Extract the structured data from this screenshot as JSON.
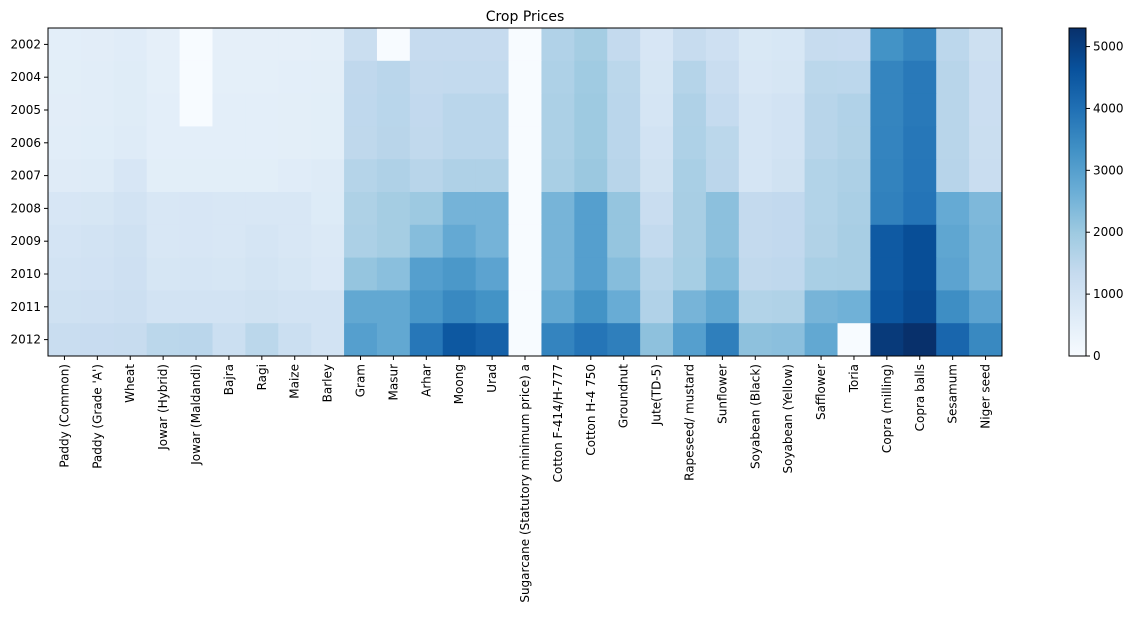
{
  "chart_data": {
    "type": "heatmap",
    "title": "Crop Prices",
    "xlabel": "",
    "ylabel": "",
    "rows": [
      "2002",
      "2004",
      "2005",
      "2006",
      "2007",
      "2008",
      "2009",
      "2010",
      "2011",
      "2012"
    ],
    "columns": [
      "Paddy (Common)",
      "Paddy (Grade 'A')",
      "Wheat",
      "Jowar (Hybrid)",
      "Jowar (Maldandi)",
      "Bajra",
      "Ragi",
      "Maize",
      "Barley",
      "Gram",
      "Masur",
      "Arhar",
      "Moong",
      "Urad",
      "Sugarcane (Statutory minimum price) a",
      "Cotton F-414/H-777",
      "Cotton H-4 750",
      "Groundnut",
      "Jute(TD-5)",
      "Rapeseed/ mustard",
      "Sunflower",
      "Soyabean (Black)",
      "Soyabean (Yellow)",
      "Safflower",
      "Toria",
      "Copra (milling)",
      "Copra balls",
      "Sesamum",
      "Niger seed"
    ],
    "values": [
      [
        530,
        560,
        620,
        485,
        0,
        485,
        485,
        485,
        500,
        1220,
        0,
        1320,
        1330,
        1330,
        0,
        1675,
        1875,
        1355,
        850,
        1300,
        1100,
        795,
        845,
        1300,
        1265,
        3300,
        3570,
        1485,
        1120
      ],
      [
        550,
        580,
        630,
        515,
        0,
        515,
        515,
        525,
        540,
        1425,
        1525,
        1360,
        1370,
        1370,
        0,
        1725,
        1960,
        1500,
        890,
        1600,
        1250,
        840,
        885,
        1500,
        1490,
        3570,
        3820,
        1550,
        1200
      ],
      [
        560,
        590,
        640,
        525,
        0,
        525,
        525,
        540,
        550,
        1435,
        1535,
        1390,
        1520,
        1520,
        0,
        1760,
        1980,
        1520,
        910,
        1700,
        1340,
        900,
        1000,
        1550,
        1665,
        3570,
        3820,
        1550,
        1200
      ],
      [
        570,
        600,
        650,
        525,
        525,
        525,
        525,
        540,
        550,
        1445,
        1545,
        1400,
        1520,
        1520,
        0,
        1760,
        1980,
        1520,
        1000,
        1715,
        1500,
        900,
        1000,
        1565,
        1680,
        3590,
        3850,
        1560,
        1220
      ],
      [
        645,
        675,
        850,
        555,
        555,
        555,
        555,
        620,
        650,
        1600,
        1700,
        1550,
        1700,
        1700,
        0,
        1800,
        2030,
        1550,
        1055,
        1800,
        1510,
        910,
        1050,
        1650,
        1735,
        3620,
        3870,
        1580,
        1240
      ],
      [
        850,
        880,
        1000,
        840,
        860,
        840,
        840,
        840,
        680,
        1730,
        1870,
        2000,
        2520,
        2520,
        0,
        2500,
        3000,
        2100,
        1250,
        1830,
        2215,
        1350,
        1390,
        1650,
        1785,
        3660,
        3910,
        2750,
        2405
      ],
      [
        950,
        980,
        1080,
        840,
        860,
        840,
        915,
        840,
        750,
        1760,
        1870,
        2300,
        2760,
        2520,
        0,
        2500,
        3000,
        2100,
        1375,
        1830,
        2215,
        1350,
        1390,
        1680,
        1830,
        4450,
        4700,
        2850,
        2450
      ],
      [
        1000,
        1030,
        1100,
        880,
        900,
        880,
        965,
        880,
        780,
        2100,
        2250,
        3000,
        3170,
        2900,
        0,
        2500,
        3000,
        2300,
        1575,
        1850,
        2350,
        1400,
        1440,
        1800,
        1830,
        4450,
        4700,
        2900,
        2450
      ],
      [
        1080,
        1110,
        1170,
        980,
        1000,
        980,
        1050,
        980,
        980,
        2800,
        2800,
        3200,
        3500,
        3300,
        0,
        2800,
        3300,
        2700,
        1675,
        2500,
        2800,
        1650,
        1690,
        2500,
        2580,
        4525,
        4775,
        3400,
        2900
      ],
      [
        1250,
        1280,
        1285,
        1500,
        1520,
        1175,
        1500,
        1175,
        980,
        3000,
        2800,
        3850,
        4500,
        4300,
        0,
        3600,
        3900,
        3700,
        2200,
        3000,
        3700,
        2200,
        2240,
        2800,
        0,
        5100,
        5350,
        4200,
        3500
      ]
    ],
    "color_range": [
      0,
      5300
    ],
    "colorbar_ticks": [
      0,
      1000,
      2000,
      3000,
      4000,
      5000
    ],
    "colormap": "Blues",
    "grid": false
  }
}
